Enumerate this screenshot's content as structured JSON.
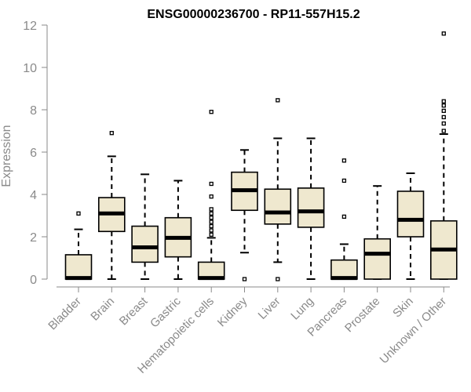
{
  "chart_data": {
    "type": "boxplot",
    "title": "ENSG00000236700 - RP11-557H15.2",
    "xlabel": "",
    "ylabel": "Expression",
    "ylim": [
      0,
      12
    ],
    "yticks": [
      0,
      2,
      4,
      6,
      8,
      10,
      12
    ],
    "grid": false,
    "colors": {
      "box_fill": "#efe8cf",
      "box_stroke": "#000000",
      "axis": "#8a8a8a",
      "text": "#8a8a8a",
      "title": "#000000"
    },
    "categories": [
      "Bladder",
      "Brain",
      "Breast",
      "Gastric",
      "Hematopoietic cells",
      "Kidney",
      "Liver",
      "Lung",
      "Pancreas",
      "Prostate",
      "Skin",
      "Unknown / Other"
    ],
    "boxes": [
      {
        "category": "Bladder",
        "whisker_low": 0,
        "q1": 0,
        "median": 0.05,
        "q3": 1.15,
        "whisker_high": 2.35,
        "outliers": [
          3.1
        ]
      },
      {
        "category": "Brain",
        "whisker_low": 0,
        "q1": 2.25,
        "median": 3.1,
        "q3": 3.85,
        "whisker_high": 5.8,
        "outliers": [
          6.9
        ]
      },
      {
        "category": "Breast",
        "whisker_low": 0,
        "q1": 0.8,
        "median": 1.5,
        "q3": 2.5,
        "whisker_high": 4.95,
        "outliers": []
      },
      {
        "category": "Gastric",
        "whisker_low": 0,
        "q1": 1.05,
        "median": 1.95,
        "q3": 2.9,
        "whisker_high": 4.65,
        "outliers": []
      },
      {
        "category": "Hematopoietic cells",
        "whisker_low": 0,
        "q1": 0,
        "median": 0.05,
        "q3": 0.8,
        "whisker_high": 1.95,
        "outliers": [
          2.1,
          2.3,
          2.5,
          2.7,
          2.9,
          3.1,
          3.3,
          3.9,
          4.5,
          7.9
        ]
      },
      {
        "category": "Kidney",
        "whisker_low": 1.25,
        "q1": 3.25,
        "median": 4.2,
        "q3": 5.05,
        "whisker_high": 6.1,
        "outliers": [
          0
        ]
      },
      {
        "category": "Liver",
        "whisker_low": 0.8,
        "q1": 2.6,
        "median": 3.15,
        "q3": 4.25,
        "whisker_high": 6.65,
        "outliers": [
          0,
          8.45
        ]
      },
      {
        "category": "Lung",
        "whisker_low": 0,
        "q1": 2.45,
        "median": 3.2,
        "q3": 4.3,
        "whisker_high": 6.65,
        "outliers": []
      },
      {
        "category": "Pancreas",
        "whisker_low": 0,
        "q1": 0,
        "median": 0.05,
        "q3": 0.9,
        "whisker_high": 1.65,
        "outliers": [
          2.95,
          4.65,
          5.6
        ]
      },
      {
        "category": "Prostate",
        "whisker_low": 0,
        "q1": 0,
        "median": 1.2,
        "q3": 1.9,
        "whisker_high": 4.4,
        "outliers": []
      },
      {
        "category": "Skin",
        "whisker_low": 0,
        "q1": 2.0,
        "median": 2.8,
        "q3": 4.15,
        "whisker_high": 5.0,
        "outliers": []
      },
      {
        "category": "Unknown / Other",
        "whisker_low": 0,
        "q1": 0,
        "median": 1.4,
        "q3": 2.75,
        "whisker_high": 6.85,
        "outliers": [
          7.0,
          7.35,
          7.65,
          7.95,
          8.2,
          8.4,
          11.6
        ]
      }
    ]
  }
}
